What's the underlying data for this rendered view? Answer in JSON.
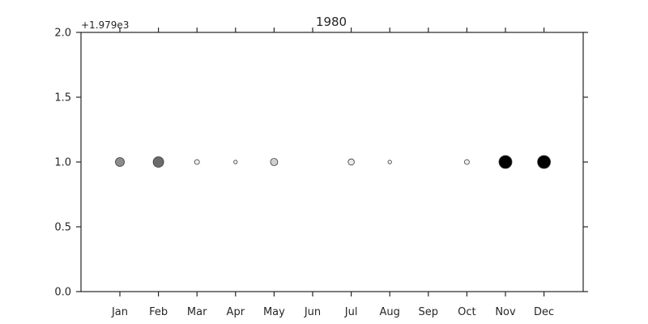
{
  "chart_data": {
    "type": "scatter",
    "title": "1980",
    "y_offset_text": "+1.979e3",
    "xlabel": "",
    "ylabel": "",
    "ylim": [
      0.0,
      2.0
    ],
    "y_ticks": [
      "0.0",
      "0.5",
      "1.0",
      "1.5",
      "2.0"
    ],
    "categories": [
      "Jan",
      "Feb",
      "Mar",
      "Apr",
      "May",
      "Jun",
      "Jul",
      "Aug",
      "Sep",
      "Oct",
      "Nov",
      "Dec"
    ],
    "points": [
      {
        "month": "Jan",
        "y": 1.0,
        "size": 5.5,
        "fill": "#8c8c8c"
      },
      {
        "month": "Feb",
        "y": 1.0,
        "size": 6.5,
        "fill": "#6b6b6b"
      },
      {
        "month": "Mar",
        "y": 1.0,
        "size": 3.0,
        "fill": "#f0f0f0"
      },
      {
        "month": "Apr",
        "y": 1.0,
        "size": 2.2,
        "fill": "#f5f5f5"
      },
      {
        "month": "May",
        "y": 1.0,
        "size": 4.5,
        "fill": "#cfcfcf"
      },
      {
        "month": "Jul",
        "y": 1.0,
        "size": 3.8,
        "fill": "#eaeaea"
      },
      {
        "month": "Aug",
        "y": 1.0,
        "size": 2.2,
        "fill": "#f5f5f5"
      },
      {
        "month": "Oct",
        "y": 1.0,
        "size": 3.0,
        "fill": "#f0f0f0"
      },
      {
        "month": "Nov",
        "y": 1.0,
        "size": 8.0,
        "fill": "#000000"
      },
      {
        "month": "Dec",
        "y": 1.0,
        "size": 8.0,
        "fill": "#000000"
      }
    ],
    "grid": false,
    "legend": "none"
  }
}
